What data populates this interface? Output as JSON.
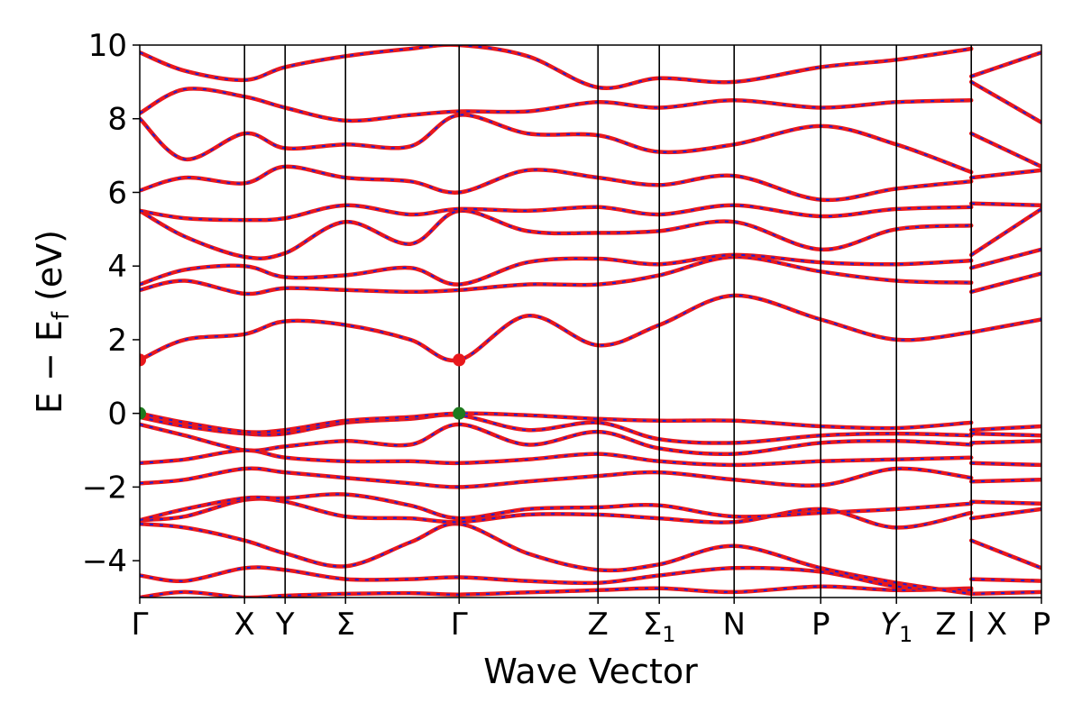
{
  "chart_data": {
    "type": "line",
    "title": "",
    "xlabel": "Wave Vector",
    "ylabel_parts": {
      "main": "E − E",
      "sub": "f",
      "unit": "(eV)"
    },
    "ylim": [
      -5,
      10
    ],
    "y_ticks": [
      -4,
      -2,
      0,
      2,
      4,
      6,
      8,
      10
    ],
    "y_tick_labels": [
      "−4",
      "−2",
      "0",
      "2",
      "4",
      "6",
      "8",
      "10"
    ],
    "k_path": [
      {
        "label": "Γ",
        "sub": "",
        "k": 0.0
      },
      {
        "label": "X",
        "sub": "",
        "k": 0.1162
      },
      {
        "label": "Y",
        "sub": "",
        "k": 0.1612
      },
      {
        "label": "Σ",
        "sub": "",
        "k": 0.2282
      },
      {
        "label": "Γ",
        "sub": "",
        "k": 0.3542
      },
      {
        "label": "Z",
        "sub": "",
        "k": 0.5082
      },
      {
        "label": "Σ",
        "sub": "1",
        "k": 0.5762
      },
      {
        "label": "N",
        "sub": "",
        "k": 0.6592
      },
      {
        "label": "P",
        "sub": "",
        "k": 0.7552
      },
      {
        "label": "Y",
        "sub": "1",
        "k": 0.8392
      },
      {
        "label": "Z",
        "sub": "",
        "k": 0.9222
      },
      {
        "label": "X",
        "sub": "",
        "k": 0.9222
      },
      {
        "label": "P",
        "sub": "",
        "k": 1.0
      }
    ],
    "markers": [
      {
        "k": 0.0,
        "e": 1.45,
        "color": "#e8181c"
      },
      {
        "k": 0.3542,
        "e": 1.45,
        "color": "#e8181c"
      },
      {
        "k": 0.0,
        "e": 0.0,
        "color": "#1e7b1e"
      },
      {
        "k": 0.3542,
        "e": 0.0,
        "color": "#1e7b1e"
      }
    ],
    "series_styles": [
      {
        "color": "#e8181c",
        "style": "solid"
      },
      {
        "color": "#1f1fd6",
        "style": "dashed"
      }
    ],
    "bands": [
      {
        "k": [
          0,
          0.05,
          0.1162,
          0.1612,
          0.2282,
          0.3,
          0.3542,
          0.43,
          0.5082,
          0.5762,
          0.6592,
          0.7552,
          0.8392,
          0.9222,
          0.9222,
          1.0
        ],
        "e": [
          -5.0,
          -4.85,
          -5.0,
          -4.95,
          -4.9,
          -4.88,
          -4.92,
          -4.86,
          -4.8,
          -4.75,
          -4.85,
          -4.7,
          -4.8,
          -4.75,
          -4.9,
          -4.85
        ]
      },
      {
        "k": [
          0,
          0.05,
          0.1162,
          0.1612,
          0.2282,
          0.3,
          0.3542,
          0.43,
          0.5082,
          0.5762,
          0.6592,
          0.7552,
          0.8392,
          0.9222,
          0.9222,
          1.0
        ],
        "e": [
          -4.4,
          -4.55,
          -4.2,
          -4.25,
          -4.5,
          -4.5,
          -4.45,
          -4.55,
          -4.6,
          -4.4,
          -4.2,
          -4.3,
          -4.7,
          -4.8,
          -4.5,
          -4.55
        ]
      },
      {
        "k": [
          0,
          0.05,
          0.1162,
          0.1612,
          0.2282,
          0.3,
          0.3542,
          0.43,
          0.5082,
          0.5762,
          0.6592,
          0.7552,
          0.8392,
          0.9222,
          0.9222,
          1.0
        ],
        "e": [
          -3.0,
          -3.1,
          -3.45,
          -3.8,
          -4.15,
          -3.5,
          -3.0,
          -3.8,
          -4.25,
          -4.1,
          -3.6,
          -4.2,
          -4.6,
          -4.9,
          -3.45,
          -4.2
        ]
      },
      {
        "k": [
          0,
          0.05,
          0.1162,
          0.1612,
          0.2282,
          0.3,
          0.3542,
          0.43,
          0.5082,
          0.5762,
          0.6592,
          0.7552,
          0.8392,
          0.9222,
          0.9222,
          1.0
        ],
        "e": [
          -2.9,
          -2.8,
          -2.35,
          -2.4,
          -2.8,
          -2.85,
          -2.95,
          -2.75,
          -2.75,
          -2.85,
          -2.95,
          -2.6,
          -3.1,
          -2.7,
          -2.85,
          -2.6
        ]
      },
      {
        "k": [
          0,
          0.05,
          0.1162,
          0.1612,
          0.2282,
          0.3,
          0.3542,
          0.43,
          0.5082,
          0.5762,
          0.6592,
          0.7552,
          0.8392,
          0.9222,
          0.9222,
          1.0
        ],
        "e": [
          -2.9,
          -2.6,
          -2.3,
          -2.3,
          -2.2,
          -2.5,
          -2.85,
          -2.6,
          -2.55,
          -2.5,
          -2.8,
          -2.7,
          -2.6,
          -2.45,
          -2.4,
          -2.45
        ]
      },
      {
        "k": [
          0,
          0.05,
          0.1162,
          0.1612,
          0.2282,
          0.3,
          0.3542,
          0.43,
          0.5082,
          0.5762,
          0.6592,
          0.7552,
          0.8392,
          0.9222,
          0.9222,
          1.0
        ],
        "e": [
          -1.9,
          -1.8,
          -1.5,
          -1.6,
          -1.75,
          -1.9,
          -2.0,
          -1.85,
          -1.7,
          -1.6,
          -1.8,
          -1.95,
          -1.5,
          -1.75,
          -1.85,
          -1.8
        ]
      },
      {
        "k": [
          0,
          0.05,
          0.1162,
          0.1612,
          0.2282,
          0.3,
          0.3542,
          0.43,
          0.5082,
          0.5762,
          0.6592,
          0.7552,
          0.8392,
          0.9222,
          0.9222,
          1.0
        ],
        "e": [
          -1.35,
          -1.25,
          -1.0,
          -1.2,
          -1.3,
          -1.3,
          -1.35,
          -1.25,
          -1.1,
          -1.3,
          -1.4,
          -1.3,
          -1.25,
          -1.2,
          -1.35,
          -1.4
        ]
      },
      {
        "k": [
          0,
          0.05,
          0.1162,
          0.1612,
          0.2282,
          0.3,
          0.3542,
          0.43,
          0.5082,
          0.5762,
          0.6592,
          0.7552,
          0.8392,
          0.9222,
          0.9222,
          1.0
        ],
        "e": [
          -0.3,
          -0.6,
          -1.0,
          -0.9,
          -0.75,
          -0.85,
          -0.3,
          -0.85,
          -0.5,
          -0.95,
          -1.1,
          -0.8,
          -0.75,
          -0.85,
          -0.8,
          -0.75
        ]
      },
      {
        "k": [
          0,
          0.05,
          0.1162,
          0.1612,
          0.2282,
          0.3,
          0.3542,
          0.43,
          0.5082,
          0.5762,
          0.6592,
          0.7552,
          0.8392,
          0.9222,
          0.9222,
          1.0
        ],
        "e": [
          -0.1,
          -0.35,
          -0.55,
          -0.55,
          -0.25,
          -0.15,
          -0.05,
          -0.45,
          -0.25,
          -0.7,
          -0.8,
          -0.6,
          -0.55,
          -0.6,
          -0.55,
          -0.6
        ]
      },
      {
        "k": [
          0,
          0.05,
          0.1162,
          0.1612,
          0.2282,
          0.3,
          0.3542,
          0.43,
          0.5082,
          0.5762,
          0.6592,
          0.7552,
          0.8392,
          0.9222,
          0.9222,
          1.0
        ],
        "e": [
          0.0,
          -0.25,
          -0.5,
          -0.45,
          -0.2,
          -0.1,
          0.0,
          -0.05,
          -0.15,
          -0.2,
          -0.2,
          -0.35,
          -0.4,
          -0.25,
          -0.45,
          -0.35
        ]
      },
      {
        "k": [
          0,
          0.05,
          0.1162,
          0.1612,
          0.2282,
          0.3,
          0.3542,
          0.43,
          0.5082,
          0.5762,
          0.6592,
          0.7552,
          0.8392,
          0.9222,
          0.9222,
          1.0
        ],
        "e": [
          1.45,
          2.0,
          2.15,
          2.5,
          2.4,
          2.0,
          1.45,
          2.65,
          1.85,
          2.4,
          3.2,
          2.55,
          2.0,
          2.2,
          2.2,
          2.55
        ]
      },
      {
        "k": [
          0,
          0.05,
          0.1162,
          0.1612,
          0.2282,
          0.3,
          0.3542,
          0.43,
          0.5082,
          0.5762,
          0.6592,
          0.7552,
          0.8392,
          0.9222,
          0.9222,
          1.0
        ],
        "e": [
          3.35,
          3.6,
          3.25,
          3.4,
          3.35,
          3.3,
          3.35,
          3.5,
          3.5,
          3.75,
          4.25,
          3.85,
          3.6,
          3.55,
          3.3,
          3.8
        ]
      },
      {
        "k": [
          0,
          0.05,
          0.1162,
          0.1612,
          0.2282,
          0.3,
          0.3542,
          0.43,
          0.5082,
          0.5762,
          0.6592,
          0.7552,
          0.8392,
          0.9222,
          0.9222,
          1.0
        ],
        "e": [
          3.5,
          3.9,
          4.0,
          3.7,
          3.75,
          3.95,
          3.5,
          4.1,
          4.2,
          4.05,
          4.3,
          4.1,
          4.05,
          4.15,
          3.95,
          4.45
        ]
      },
      {
        "k": [
          0,
          0.05,
          0.1162,
          0.1612,
          0.2282,
          0.3,
          0.3542,
          0.43,
          0.5082,
          0.5762,
          0.6592,
          0.7552,
          0.8392,
          0.9222,
          0.9222,
          1.0
        ],
        "e": [
          5.5,
          4.8,
          4.25,
          4.35,
          5.2,
          4.6,
          5.5,
          4.95,
          4.9,
          4.95,
          5.2,
          4.45,
          5.0,
          5.1,
          4.3,
          5.55
        ]
      },
      {
        "k": [
          0,
          0.05,
          0.1162,
          0.1612,
          0.2282,
          0.3,
          0.3542,
          0.43,
          0.5082,
          0.5762,
          0.6592,
          0.7552,
          0.8392,
          0.9222,
          0.9222,
          1.0
        ],
        "e": [
          5.5,
          5.3,
          5.25,
          5.3,
          5.65,
          5.4,
          5.55,
          5.5,
          5.6,
          5.4,
          5.65,
          5.35,
          5.55,
          5.6,
          5.7,
          5.65
        ]
      },
      {
        "k": [
          0,
          0.05,
          0.1162,
          0.1612,
          0.2282,
          0.3,
          0.3542,
          0.43,
          0.5082,
          0.5762,
          0.6592,
          0.7552,
          0.8392,
          0.9222,
          0.9222,
          1.0
        ],
        "e": [
          6.05,
          6.4,
          6.25,
          6.7,
          6.4,
          6.3,
          6.0,
          6.6,
          6.4,
          6.2,
          6.45,
          5.8,
          6.1,
          6.3,
          6.4,
          6.6
        ]
      },
      {
        "k": [
          0,
          0.05,
          0.1162,
          0.1612,
          0.2282,
          0.3,
          0.3542,
          0.43,
          0.5082,
          0.5762,
          0.6592,
          0.7552,
          0.8392,
          0.9222,
          0.9222,
          1.0
        ],
        "e": [
          8.0,
          6.9,
          7.6,
          7.2,
          7.3,
          7.25,
          8.1,
          7.6,
          7.55,
          7.1,
          7.3,
          7.8,
          7.3,
          6.55,
          7.6,
          6.7
        ]
      },
      {
        "k": [
          0,
          0.05,
          0.1162,
          0.1612,
          0.2282,
          0.3,
          0.3542,
          0.43,
          0.5082,
          0.5762,
          0.6592,
          0.7552,
          0.8392,
          0.9222,
          0.9222,
          1.0
        ],
        "e": [
          8.15,
          8.8,
          8.6,
          8.3,
          7.95,
          8.1,
          8.2,
          8.2,
          8.45,
          8.3,
          8.5,
          8.3,
          8.45,
          8.5,
          9.0,
          7.9
        ]
      },
      {
        "k": [
          0,
          0.05,
          0.1162,
          0.1612,
          0.2282,
          0.3,
          0.3542,
          0.43,
          0.5082,
          0.5762,
          0.6592,
          0.7552,
          0.8392,
          0.9222,
          0.9222,
          1.0
        ],
        "e": [
          9.8,
          9.3,
          9.05,
          9.4,
          9.7,
          9.9,
          10.0,
          9.7,
          8.85,
          9.1,
          9.0,
          9.4,
          9.6,
          9.9,
          9.15,
          9.8
        ]
      }
    ]
  }
}
